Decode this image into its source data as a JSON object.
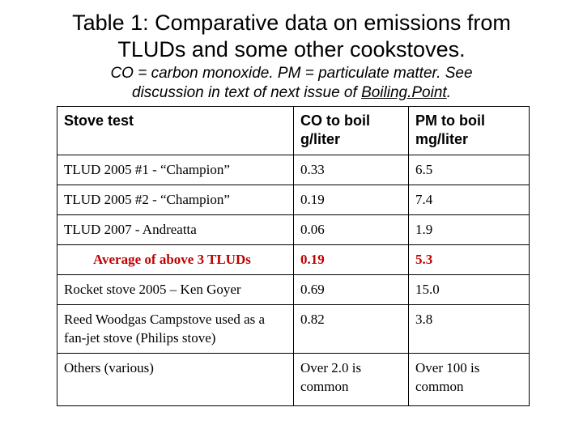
{
  "title": {
    "line1": "Table 1: Comparative data on emissions from",
    "line2": "TLUDs and some other cookstoves."
  },
  "subtitle": {
    "line1": "CO = carbon monoxide.  PM = particulate matter.  See",
    "line2_prefix": "discussion in text of next issue of ",
    "line2_link": "Boiling.Point",
    "line2_suffix": "."
  },
  "table": {
    "headers": {
      "stove": "Stove test",
      "co_line1": "CO to boil",
      "co_line2": "g/liter",
      "pm_line1": "PM to boil",
      "pm_line2": "mg/liter"
    },
    "rows": [
      {
        "stove": "TLUD 2005 #1 - “Champion”",
        "co": "0.33",
        "pm": "6.5"
      },
      {
        "stove": "TLUD 2005 #2 - “Champion”",
        "co": "0.19",
        "pm": "7.4"
      },
      {
        "stove": "TLUD 2007 - Andreatta",
        "co": "0.06",
        "pm": "1.9"
      },
      {
        "stove": "Average of above 3 TLUDs",
        "co": "0.19",
        "pm": "5.3"
      },
      {
        "stove": "Rocket stove 2005 – Ken Goyer",
        "co": "0.69",
        "pm": "15.0"
      },
      {
        "stove": "Reed Woodgas Campstove used as a fan-jet stove (Philips stove)",
        "co": "0.82",
        "pm": "3.8"
      },
      {
        "stove": "Others (various)",
        "co": "Over 2.0 is common",
        "pm": "Over 100 is common"
      }
    ],
    "highlight_color": "#c00000"
  }
}
